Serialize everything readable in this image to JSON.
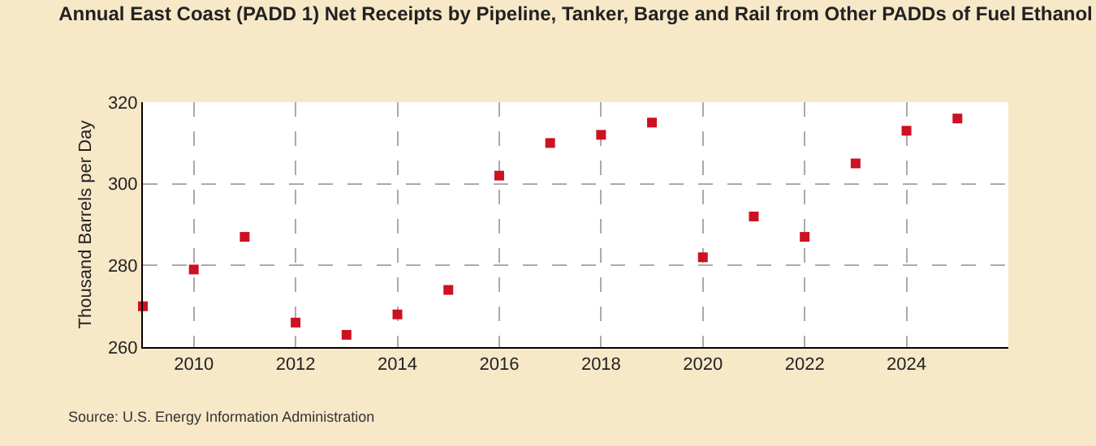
{
  "chart_data": {
    "type": "scatter",
    "title": "Annual East Coast (PADD 1) Net Receipts by Pipeline, Tanker, Barge and Rail from Other PADDs of Fuel Ethanol",
    "ylabel": "Thousand Barrels per Day",
    "x": [
      2009,
      2010,
      2011,
      2012,
      2013,
      2014,
      2015,
      2016,
      2017,
      2018,
      2019,
      2020,
      2021,
      2022,
      2023,
      2024,
      2025
    ],
    "series": [
      {
        "color": "#cc1122",
        "values": [
          270,
          279,
          287,
          266,
          263,
          268,
          274,
          302,
          310,
          312,
          315,
          282,
          292,
          287,
          305,
          313,
          316
        ]
      }
    ],
    "xlim": [
      2009,
      2026
    ],
    "xticks": [
      2010,
      2012,
      2014,
      2016,
      2018,
      2020,
      2022,
      2024
    ],
    "ylim": [
      260,
      320
    ],
    "yticks": [
      260,
      280,
      300,
      320
    ],
    "grid": true,
    "marker": "square",
    "legend": false,
    "annotations": [
      "Source: U.S. Energy Information Administration"
    ]
  }
}
